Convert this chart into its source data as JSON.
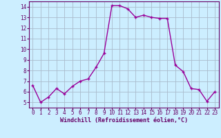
{
  "xlabel": "Windchill (Refroidissement éolien,°C)",
  "x_values": [
    0,
    1,
    2,
    3,
    4,
    5,
    6,
    7,
    8,
    9,
    10,
    11,
    12,
    13,
    14,
    15,
    16,
    17,
    18,
    19,
    20,
    21,
    22,
    23
  ],
  "y_values": [
    6.6,
    5.0,
    5.5,
    6.3,
    5.8,
    6.5,
    7.0,
    7.2,
    8.3,
    9.6,
    14.1,
    14.1,
    13.8,
    13.0,
    13.2,
    13.0,
    12.9,
    12.9,
    8.5,
    7.9,
    6.3,
    6.2,
    5.1,
    6.0
  ],
  "line_color": "#990099",
  "marker_color": "#990099",
  "bg_color": "#cceeff",
  "grid_color": "#aabbcc",
  "spine_color": "#660066",
  "text_color": "#660066",
  "xlim": [
    -0.5,
    23.5
  ],
  "ylim": [
    4.5,
    14.5
  ],
  "yticks": [
    5,
    6,
    7,
    8,
    9,
    10,
    11,
    12,
    13,
    14
  ],
  "xticks": [
    0,
    1,
    2,
    3,
    4,
    5,
    6,
    7,
    8,
    9,
    10,
    11,
    12,
    13,
    14,
    15,
    16,
    17,
    18,
    19,
    20,
    21,
    22,
    23
  ],
  "tick_fontsize": 5.5,
  "xlabel_fontsize": 6.0,
  "linewidth": 1.0,
  "markersize": 3.0
}
